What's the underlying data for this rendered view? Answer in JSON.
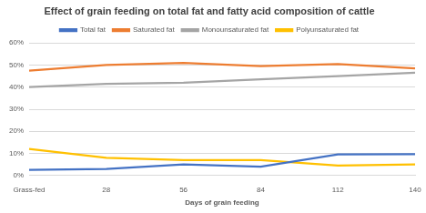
{
  "chart_data": {
    "type": "line",
    "title": "Effect of grain feeding on total fat and fatty acid composition of cattle",
    "x_label": "Days of grain feeding",
    "categories": [
      "Grass-fed",
      "28",
      "56",
      "84",
      "112",
      "140"
    ],
    "series": [
      {
        "name": "Total fat",
        "color": "#4472c4",
        "values": [
          2.5,
          3,
          5,
          4,
          9.5,
          9.7
        ]
      },
      {
        "name": "Saturated fat",
        "color": "#ed7d31",
        "values": [
          47.5,
          50,
          51,
          49.5,
          50.5,
          48.5
        ]
      },
      {
        "name": "Monounsaturated fat",
        "color": "#a5a5a5",
        "values": [
          40,
          41.5,
          42,
          43.5,
          45,
          46.5
        ]
      },
      {
        "name": "Polyunsaturated fat",
        "color": "#ffc000",
        "values": [
          12,
          8,
          7,
          7,
          4.5,
          5
        ]
      }
    ],
    "ylim": [
      0,
      60
    ],
    "yticks": [
      {
        "value": 0,
        "label": "0%"
      },
      {
        "value": 10,
        "label": "10%"
      },
      {
        "value": 20,
        "label": "20%"
      },
      {
        "value": 30,
        "label": "30%"
      },
      {
        "value": 40,
        "label": "40%"
      },
      {
        "value": 50,
        "label": "50%"
      },
      {
        "value": 60,
        "label": "60%"
      }
    ],
    "grid": true,
    "legend": "top",
    "marker": "none"
  }
}
